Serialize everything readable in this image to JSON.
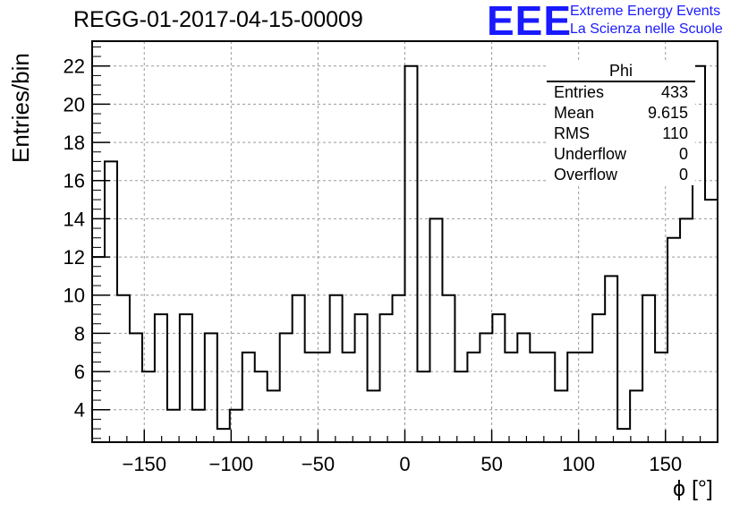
{
  "header": {
    "title": "REGG-01-2017-04-15-00009",
    "logo": "EEE",
    "logo_line1": "Extreme Energy Events",
    "logo_line2": "La Scienza nelle Scuole"
  },
  "stats_box": {
    "name": "Phi",
    "rows": [
      {
        "label": "Entries",
        "value": "433"
      },
      {
        "label": "Mean",
        "value": "9.615"
      },
      {
        "label": "RMS",
        "value": "110"
      },
      {
        "label": "Underflow",
        "value": "0"
      },
      {
        "label": "Overflow",
        "value": "0"
      }
    ]
  },
  "colors": {
    "line": "#000000",
    "grid": "#999999",
    "logo": "#1a1aff"
  },
  "chart_data": {
    "type": "bar",
    "style": "step-histogram",
    "xlabel": "ϕ [°]",
    "ylabel": "Entries/bin",
    "xlim": [
      -180,
      180
    ],
    "ylim": [
      2.3,
      23.3
    ],
    "bin_edges_start": -180,
    "bin_width": 7.2,
    "x_ticks": [
      -150,
      -100,
      -50,
      0,
      50,
      100,
      150
    ],
    "x_tick_labels": [
      "−150",
      "−100",
      "−50",
      "0",
      "50",
      "100",
      "150"
    ],
    "y_ticks": [
      4,
      6,
      8,
      10,
      12,
      14,
      16,
      18,
      20,
      22
    ],
    "y_tick_labels": [
      "4",
      "6",
      "8",
      "10",
      "12",
      "14",
      "16",
      "18",
      "20",
      "22"
    ],
    "grid": true,
    "values": [
      12,
      17,
      10,
      8,
      6,
      9,
      4,
      9,
      4,
      8,
      3,
      4,
      7,
      6,
      5,
      8,
      10,
      7,
      7,
      10,
      7,
      9,
      5,
      9,
      10,
      22,
      6,
      14,
      10,
      6,
      7,
      8,
      9,
      7,
      8,
      7,
      7,
      5,
      7,
      7,
      9,
      11,
      3,
      5,
      10,
      7,
      13,
      14,
      22,
      15
    ]
  }
}
